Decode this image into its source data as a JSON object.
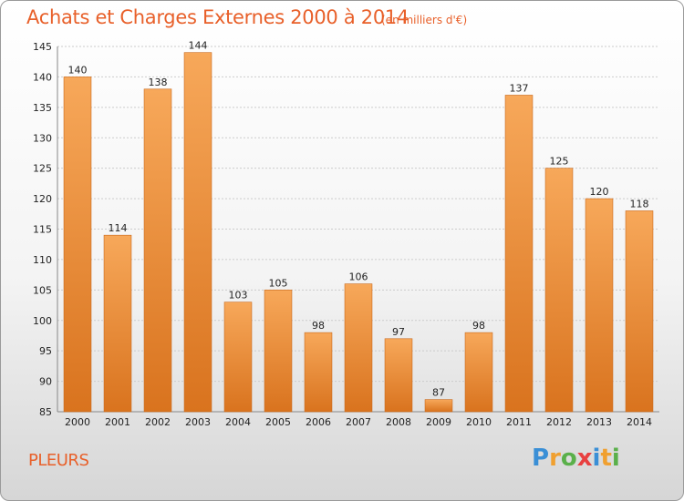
{
  "title": "Achats et Charges Externes 2000 à 2014",
  "subtitle": "(en milliers d'€)",
  "place": "PLEURS",
  "logo": {
    "letters": [
      "P",
      "r",
      "o",
      "x",
      "i",
      "t",
      "i"
    ],
    "colors": [
      "#3a8fd6",
      "#f0a030",
      "#5ab04a",
      "#e84040",
      "#3a8fd6",
      "#f0a030",
      "#5ab04a"
    ]
  },
  "colors": {
    "bar_top": "#f7a85a",
    "bar_bottom": "#d9731e",
    "bar_edge": "#c9681a",
    "grid": "#cccccc",
    "axis_text": "#222222"
  },
  "chart_data": {
    "type": "bar",
    "categories": [
      "2000",
      "2001",
      "2002",
      "2003",
      "2004",
      "2005",
      "2006",
      "2007",
      "2008",
      "2009",
      "2010",
      "2011",
      "2012",
      "2013",
      "2014"
    ],
    "values": [
      140,
      114,
      138,
      144,
      103,
      105,
      98,
      106,
      97,
      87,
      98,
      137,
      125,
      120,
      118
    ],
    "ylim": [
      85,
      145
    ],
    "yticks": [
      85,
      90,
      95,
      100,
      105,
      110,
      115,
      120,
      125,
      130,
      135,
      140,
      145
    ],
    "grid": true,
    "xlabel": "",
    "ylabel": ""
  }
}
